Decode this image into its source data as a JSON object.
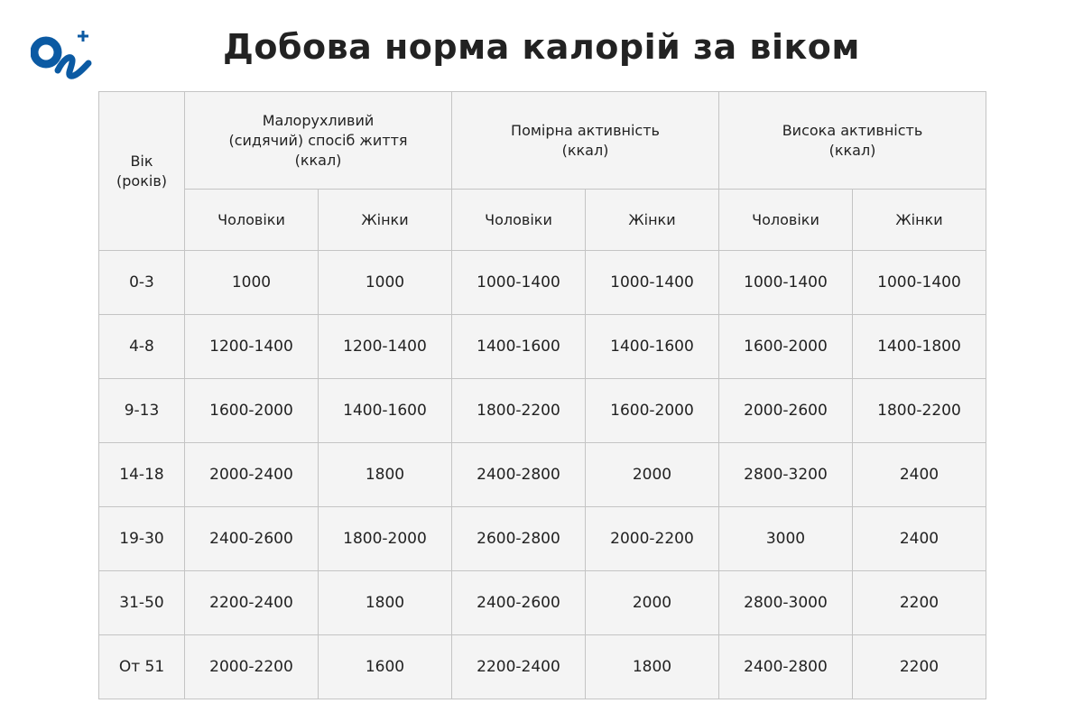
{
  "logo": {
    "text": "On+",
    "color": "#0b5aa3"
  },
  "title": "Добова норма калорій за віком",
  "table": {
    "age_header": [
      "Вік",
      "(років)"
    ],
    "groups": [
      [
        "Малорухливий",
        "(сидячий) спосіб життя",
        "(ккал)"
      ],
      [
        "Помірна активність",
        "(ккал)"
      ],
      [
        "Висока активність",
        "(ккал)"
      ]
    ],
    "sub": [
      "Чоловіки",
      "Жінки",
      "Чоловіки",
      "Жінки",
      "Чоловіки",
      "Жінки"
    ],
    "rows": [
      [
        "0-3",
        "1000",
        "1000",
        "1000-1400",
        "1000-1400",
        "1000-1400",
        "1000-1400"
      ],
      [
        "4-8",
        "1200-1400",
        "1200-1400",
        "1400-1600",
        "1400-1600",
        "1600-2000",
        "1400-1800"
      ],
      [
        "9-13",
        "1600-2000",
        "1400-1600",
        "1800-2200",
        "1600-2000",
        "2000-2600",
        "1800-2200"
      ],
      [
        "14-18",
        "2000-2400",
        "1800",
        "2400-2800",
        "2000",
        "2800-3200",
        "2400"
      ],
      [
        "19-30",
        "2400-2600",
        "1800-2000",
        "2600-2800",
        "2000-2200",
        "3000",
        "2400"
      ],
      [
        "31-50",
        "2200-2400",
        "1800",
        "2400-2600",
        "2000",
        "2800-3000",
        "2200"
      ],
      [
        "От 51",
        "2000-2200",
        "1600",
        "2200-2400",
        "1800",
        "2400-2800",
        "2200"
      ]
    ]
  }
}
